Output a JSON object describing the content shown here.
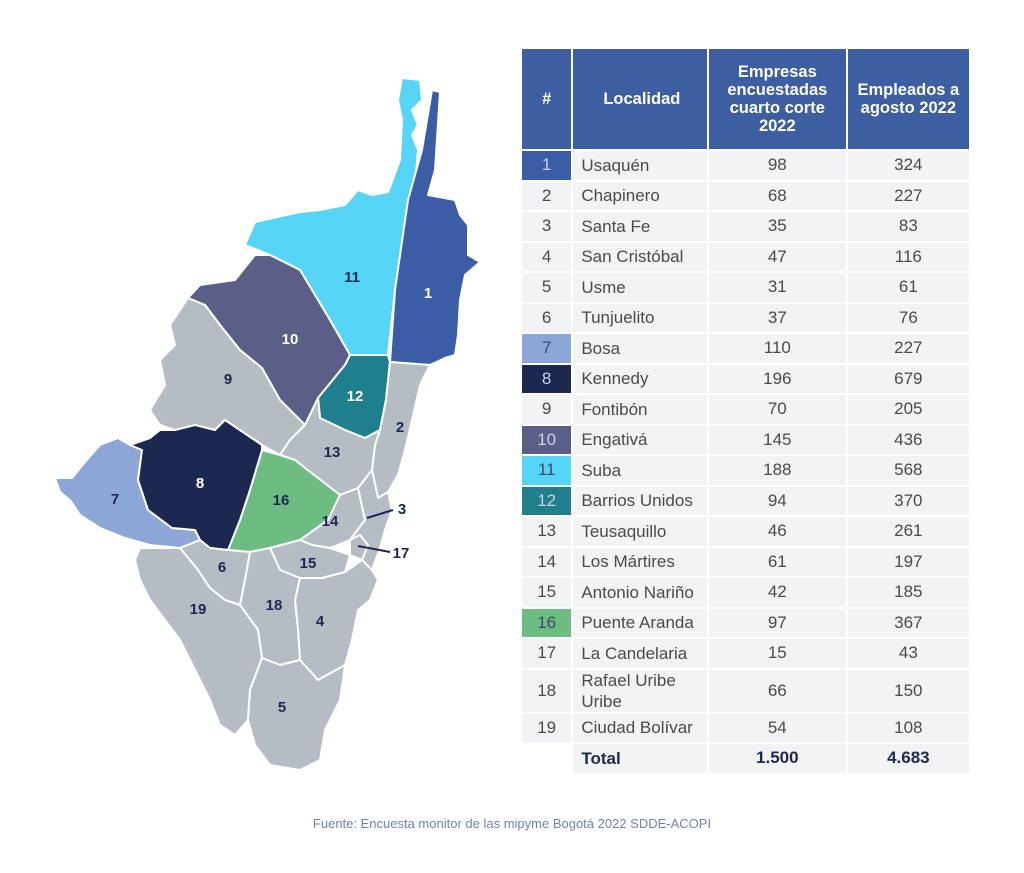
{
  "table": {
    "headers": {
      "num": "#",
      "localidad": "Localidad",
      "empresas": "Empresas encuestadas cuarto corte 2022",
      "empleados": "Empleados a agosto 2022"
    },
    "rows": [
      {
        "num": "1",
        "name": "Usaquén",
        "empresas": "98",
        "empleados": "324",
        "color": "#3b5da5"
      },
      {
        "num": "2",
        "name": "Chapinero",
        "empresas": "68",
        "empleados": "227",
        "color": ""
      },
      {
        "num": "3",
        "name": "Santa Fe",
        "empresas": "35",
        "empleados": "83",
        "color": ""
      },
      {
        "num": "4",
        "name": "San Cristóbal",
        "empresas": "47",
        "empleados": "116",
        "color": ""
      },
      {
        "num": "5",
        "name": "Usme",
        "empresas": "31",
        "empleados": "61",
        "color": ""
      },
      {
        "num": "6",
        "name": "Tunjuelito",
        "empresas": "37",
        "empleados": "76",
        "color": ""
      },
      {
        "num": "7",
        "name": "Bosa",
        "empresas": "110",
        "empleados": "227",
        "color": "#8da6d8"
      },
      {
        "num": "8",
        "name": "Kennedy",
        "empresas": "196",
        "empleados": "679",
        "color": "#1c2850"
      },
      {
        "num": "9",
        "name": "Fontibón",
        "empresas": "70",
        "empleados": "205",
        "color": ""
      },
      {
        "num": "10",
        "name": "Engativá",
        "empresas": "145",
        "empleados": "436",
        "color": "#5b5f88"
      },
      {
        "num": "11",
        "name": "Suba",
        "empresas": "188",
        "empleados": "568",
        "color": "#57d5f7"
      },
      {
        "num": "12",
        "name": "Barrios Unidos",
        "empresas": "94",
        "empleados": "370",
        "color": "#1f7f8c"
      },
      {
        "num": "13",
        "name": "Teusaquillo",
        "empresas": "46",
        "empleados": "261",
        "color": ""
      },
      {
        "num": "14",
        "name": "Los Mártires",
        "empresas": "61",
        "empleados": "197",
        "color": ""
      },
      {
        "num": "15",
        "name": "Antonio Nariño",
        "empresas": "42",
        "empleados": "185",
        "color": ""
      },
      {
        "num": "16",
        "name": "Puente Aranda",
        "empresas": "97",
        "empleados": "367",
        "color": "#6dbd82"
      },
      {
        "num": "17",
        "name": "La Candelaria",
        "empresas": "15",
        "empleados": "43",
        "color": ""
      },
      {
        "num": "18",
        "name": "Rafael Uribe Uribe",
        "empresas": "66",
        "empleados": "150",
        "color": ""
      },
      {
        "num": "19",
        "name": "Ciudad Bolívar",
        "empresas": "54",
        "empleados": "108",
        "color": ""
      }
    ],
    "total": {
      "label": "Total",
      "empresas": "1.500",
      "empleados": "4.683"
    }
  },
  "map": {
    "labels": [
      "1",
      "2",
      "3",
      "4",
      "5",
      "6",
      "7",
      "8",
      "9",
      "10",
      "11",
      "12",
      "13",
      "14",
      "15",
      "16",
      "17",
      "18",
      "19"
    ],
    "colors": {
      "base": "#b6bcc4",
      "usaquen": "#3b5da5",
      "bosa": "#8da6d8",
      "kennedy": "#1c2850",
      "engativa": "#5b5f88",
      "suba": "#57d5f7",
      "barrios_unidos": "#1f7f8c",
      "puente_aranda": "#6dbd82"
    }
  },
  "source": "Fuente: Encuesta monitor de las mipyme Bogotá 2022 SDDE-ACOPI"
}
